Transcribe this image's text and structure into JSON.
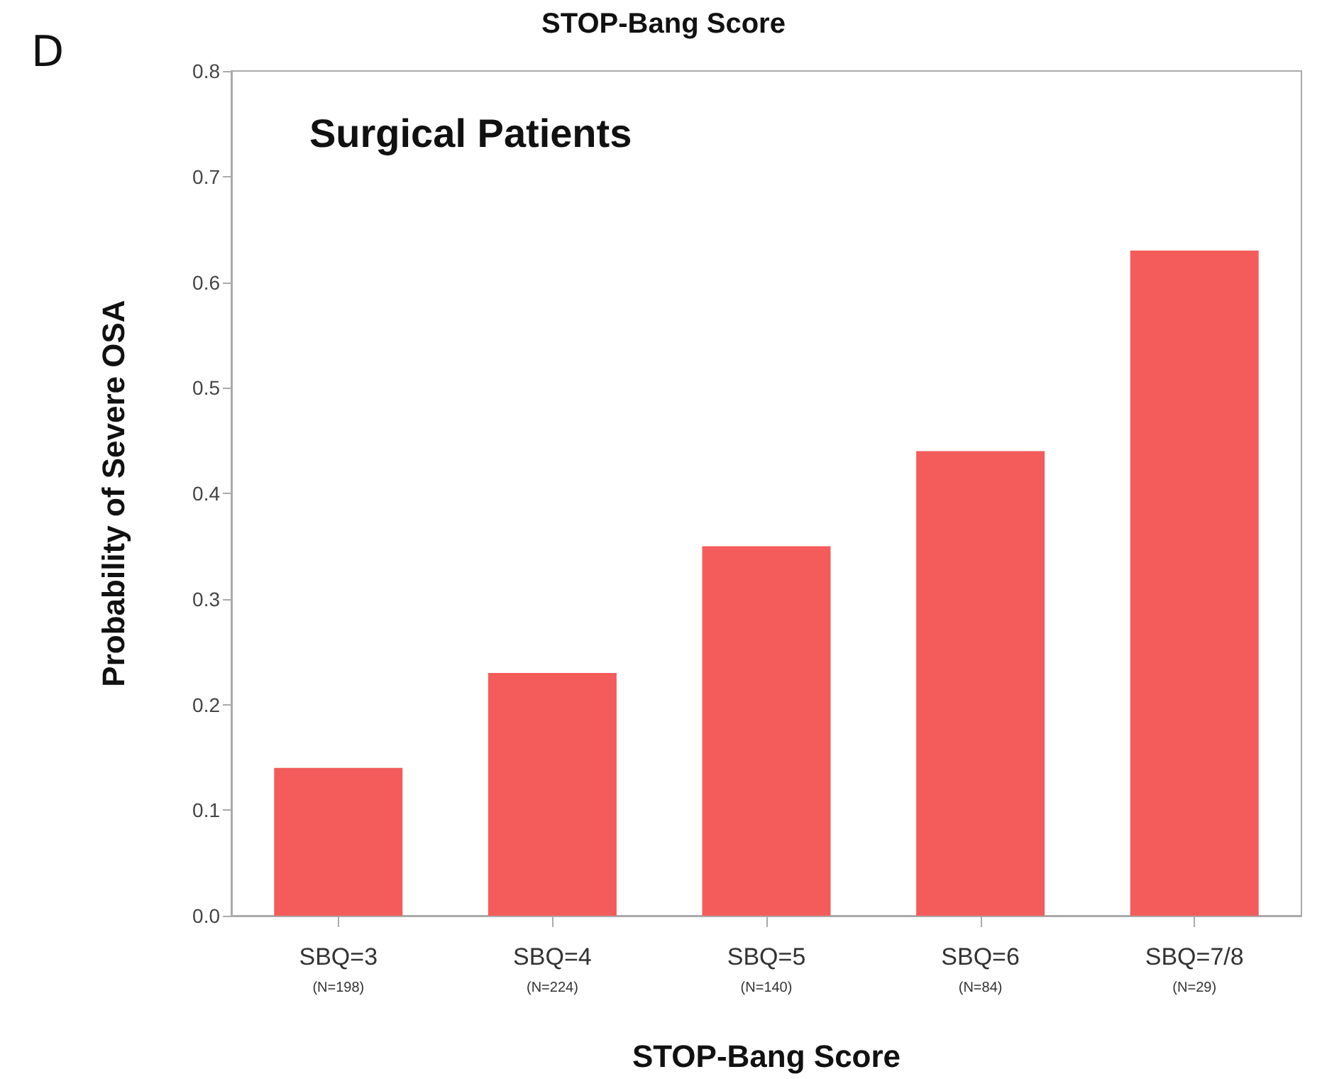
{
  "chart_data": {
    "type": "bar",
    "title": "STOP-Bang Score",
    "annotations": [
      "D",
      "Surgical Patients"
    ],
    "categories": [
      "SBQ=3\n(N=198)",
      "SBQ=4\n(N=224)",
      "SBQ=5\n(N=140)",
      "SBQ=6\n(N=84)",
      "SBQ=7/8\n(N=29)"
    ],
    "values": [
      0.14,
      0.23,
      0.35,
      0.44,
      0.63
    ],
    "color": "#f45b5b",
    "xlabel": "STOP-Bang Score",
    "ylabel": "Probability of Severe OSA",
    "ylim": [
      0,
      0.8
    ],
    "yticks": [
      {
        "value": 0,
        "label": "0.0"
      },
      0.1,
      0.2,
      0.3,
      0.4,
      0.5,
      0.6,
      0.7,
      0.8
    ],
    "grid": false
  }
}
